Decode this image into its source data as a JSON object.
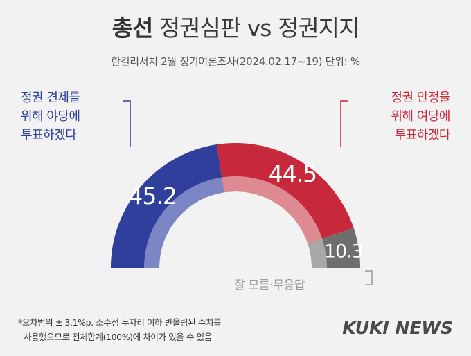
{
  "header": {
    "title_bold": "총선",
    "title_rest": " 정권심판 vs 정권지지",
    "subtitle": "한길리서치 2월 정기여론조사(2024.02.17~19) 단위: %"
  },
  "labels": {
    "left": [
      "정권 견제를",
      "위해 야당에",
      "투표하겠다"
    ],
    "right": [
      "정권 안정을",
      "위해 여당에",
      "투표하겠다"
    ],
    "unknown": "잘 모름·무응답"
  },
  "notes": [
    "*오차범위 ± 3.1%p. 소수점 두자리 이하 반올림된 수치를",
    "사용했으므로 전체합계(100%)에 차이가 있을 수 있음"
  ],
  "brand": "KUKI NEWS",
  "chart_data": {
    "type": "pie",
    "subtype": "half-donut",
    "unit": "%",
    "slices": [
      {
        "label": "정권 견제를 위해 야당에 투표하겠다",
        "value": 45.2,
        "display": "45.2",
        "color": "#2f3f9b"
      },
      {
        "label": "정권 안정을 위해 여당에 투표하겠다",
        "value": 44.5,
        "display": "44.5",
        "color": "#c8283b"
      },
      {
        "label": "잘 모름·무응답",
        "value": 10.3,
        "display": "10.3",
        "color": "#6e6e6e"
      }
    ]
  }
}
